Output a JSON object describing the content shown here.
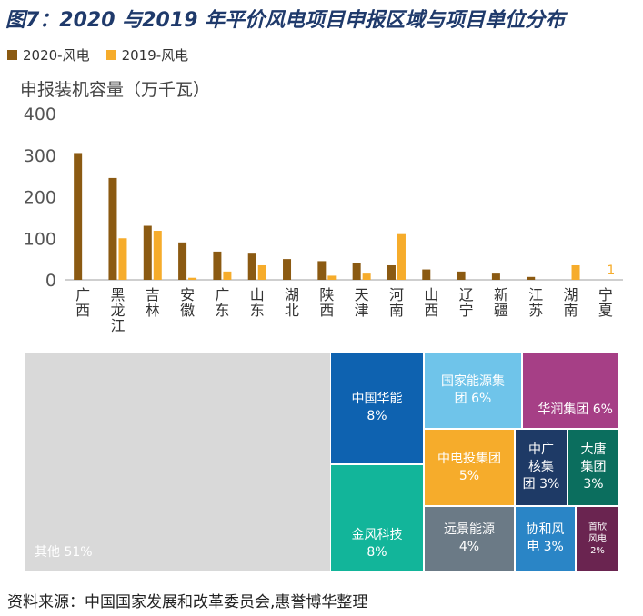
{
  "title": "图7：2020 与2019 年平价风电项目申报区域与项目单位分布",
  "source": "资料来源：中国国家发展和改革委员会,惠誉博华整理",
  "colors": {
    "s2020": "#8b5a12",
    "s2019": "#f6ac2b",
    "axis": "#bfbfbf",
    "tick": "#555555"
  },
  "chart_data": [
    {
      "type": "bar",
      "ylabel": "申报装机容量（万千瓦）",
      "ylim": [
        0,
        400
      ],
      "yticks": [
        0,
        100,
        200,
        300,
        400
      ],
      "categories": [
        "广西",
        "黑龙江",
        "吉林",
        "安徽",
        "广东",
        "山东",
        "湖北",
        "陕西",
        "天津",
        "河南",
        "山西",
        "辽宁",
        "新疆",
        "江苏",
        "湖南",
        "宁夏"
      ],
      "series": [
        {
          "name": "2020-风电",
          "values": [
            305,
            245,
            130,
            90,
            68,
            63,
            50,
            45,
            40,
            35,
            25,
            20,
            15,
            7,
            0,
            0
          ]
        },
        {
          "name": "2019-风电",
          "values": [
            0,
            100,
            118,
            5,
            20,
            35,
            0,
            10,
            15,
            110,
            0,
            0,
            0,
            0,
            35,
            1
          ]
        }
      ],
      "annotation": "1"
    },
    {
      "type": "treemap",
      "items": [
        {
          "label": "其他 51%",
          "color": "#d9d9d9"
        },
        {
          "label": "中国华能\n8%",
          "color": "#0e62b0"
        },
        {
          "label": "金风科技\n8%",
          "color": "#12b59a"
        },
        {
          "label": "国家能源集\n团 6%",
          "color": "#6fc4ea"
        },
        {
          "label": "华润集团 6%",
          "color": "#a63f86"
        },
        {
          "label": "中电投集团\n5%",
          "color": "#f6ac2b"
        },
        {
          "label": "中广\n核集\n团 3%",
          "color": "#1e3a66"
        },
        {
          "label": "大唐\n集团\n3%",
          "color": "#0b6e5e"
        },
        {
          "label": "远景能源\n4%",
          "color": "#6b7a86"
        },
        {
          "label": "协和风\n电 3%",
          "color": "#2a85c6"
        },
        {
          "label": "首欣\n风电\n2%",
          "color": "#6a2450"
        }
      ]
    }
  ]
}
